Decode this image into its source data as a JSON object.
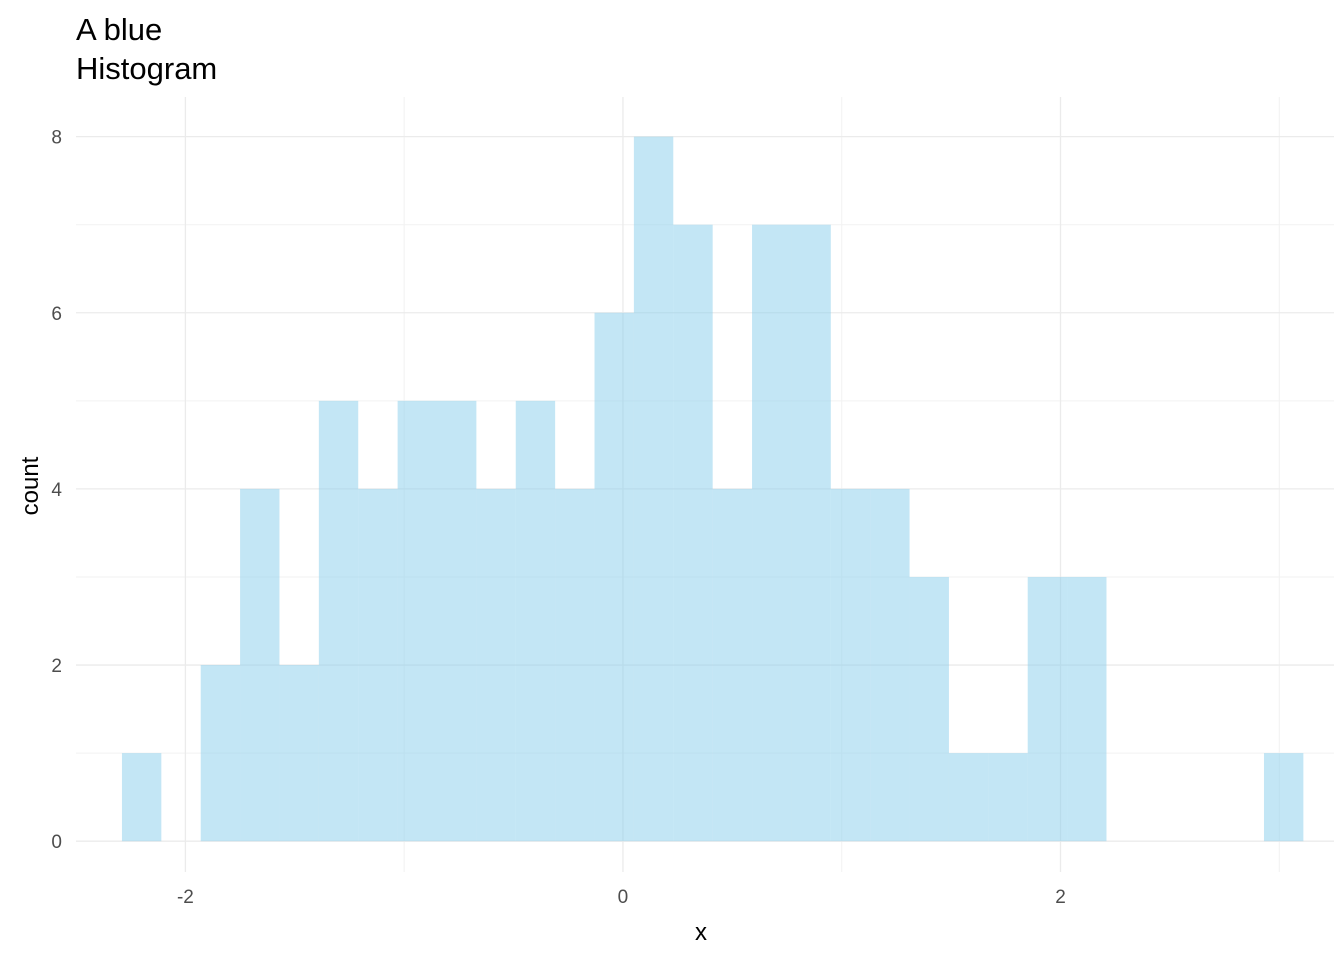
{
  "chart_data": {
    "type": "bar",
    "subtype": "histogram",
    "title": "A blue\nHistogram",
    "xlabel": "x",
    "ylabel": "count",
    "xlim": [
      -2.5,
      3.25
    ],
    "ylim": [
      -0.35,
      8.45
    ],
    "x_ticks": [
      -2,
      0,
      2
    ],
    "x_tick_labels": [
      "-2",
      "0",
      "2"
    ],
    "y_ticks": [
      0,
      2,
      4,
      6,
      8
    ],
    "y_tick_labels": [
      "0",
      "2",
      "4",
      "6",
      "8"
    ],
    "fill_color": "#87CEEB",
    "fill_opacity": 0.5,
    "grid": true,
    "bin_width": 0.18,
    "bins": [
      {
        "x": -2.2,
        "count": 1
      },
      {
        "x": -2.02,
        "count": 0
      },
      {
        "x": -1.84,
        "count": 2
      },
      {
        "x": -1.66,
        "count": 4
      },
      {
        "x": -1.48,
        "count": 2
      },
      {
        "x": -1.3,
        "count": 5
      },
      {
        "x": -1.12,
        "count": 4
      },
      {
        "x": -0.94,
        "count": 5
      },
      {
        "x": -0.76,
        "count": 5
      },
      {
        "x": -0.58,
        "count": 4
      },
      {
        "x": -0.4,
        "count": 5
      },
      {
        "x": -0.22,
        "count": 4
      },
      {
        "x": -0.04,
        "count": 6
      },
      {
        "x": 0.14,
        "count": 8
      },
      {
        "x": 0.32,
        "count": 7
      },
      {
        "x": 0.5,
        "count": 4
      },
      {
        "x": 0.68,
        "count": 7
      },
      {
        "x": 0.86,
        "count": 7
      },
      {
        "x": 1.04,
        "count": 4
      },
      {
        "x": 1.22,
        "count": 4
      },
      {
        "x": 1.4,
        "count": 3
      },
      {
        "x": 1.58,
        "count": 1
      },
      {
        "x": 1.76,
        "count": 1
      },
      {
        "x": 1.94,
        "count": 3
      },
      {
        "x": 2.12,
        "count": 3
      },
      {
        "x": 2.3,
        "count": 0
      },
      {
        "x": 2.48,
        "count": 0
      },
      {
        "x": 2.66,
        "count": 0
      },
      {
        "x": 2.84,
        "count": 0
      },
      {
        "x": 3.02,
        "count": 1
      }
    ]
  }
}
